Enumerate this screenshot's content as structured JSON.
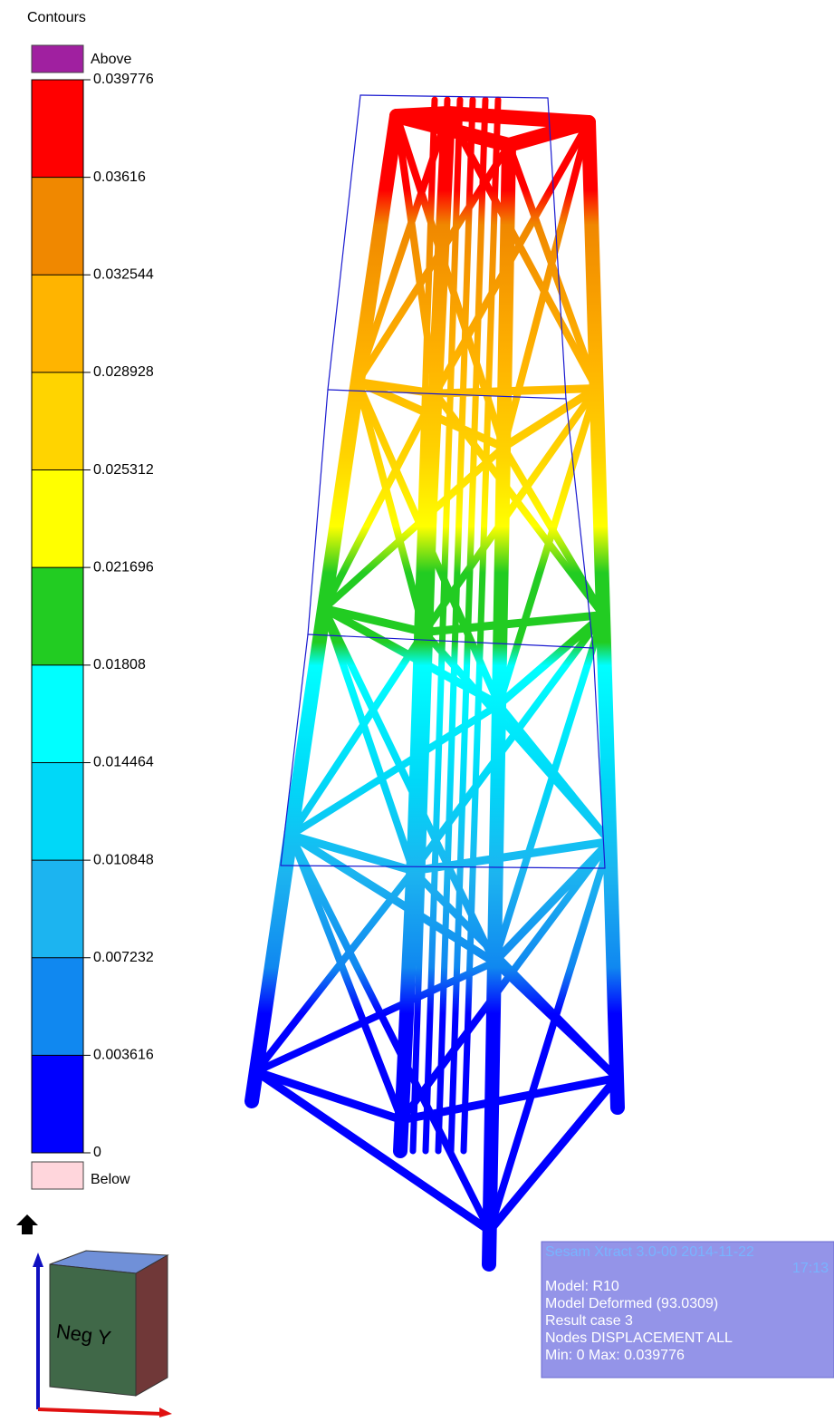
{
  "legend": {
    "title": "Contours",
    "above": {
      "label": "Above",
      "color": "#a020a0"
    },
    "below": {
      "label": "Below",
      "color": "#ffd6dc"
    },
    "levels": [
      "0.039776",
      "0.03616",
      "0.032544",
      "0.028928",
      "0.025312",
      "0.021696",
      "0.01808",
      "0.014464",
      "0.010848",
      "0.007232",
      "0.003616",
      "0"
    ],
    "colors": [
      "#ff0000",
      "#f08800",
      "#ffb400",
      "#ffd400",
      "#ffff00",
      "#22cc22",
      "#00ffff",
      "#00d8f8",
      "#1cb4f0",
      "#1088f0",
      "#0000ff"
    ]
  },
  "view_cube": {
    "face": "Neg Y"
  },
  "info_box": {
    "header": [
      "Sesam Xtract 3.0-00 2014-11-22",
      "17:13"
    ],
    "lines": [
      "Model: R10",
      "Model Deformed (93.0309)",
      "Result case 3",
      "Nodes DISPLACEMENT ALL",
      "Min: 0 Max: 0.039776"
    ]
  }
}
